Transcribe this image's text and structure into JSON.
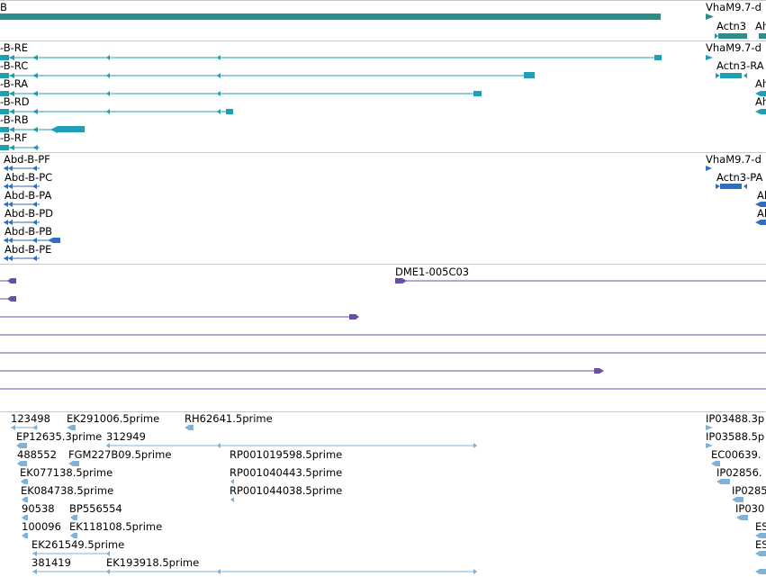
{
  "colors": {
    "gene": "#2a8f8a",
    "transcript": "#1f9fb4",
    "protein": "#2f6dbe",
    "cdna": "#6a4fa8",
    "est": "#7fb2d8",
    "divider": "#c8c8c8"
  },
  "gene_track": {
    "labels": [
      "B",
      "VhaM9.7-d",
      "Actn3",
      "Ah"
    ]
  },
  "transcript_track": {
    "labels": [
      "-B-RE",
      "-B-RC",
      "-B-RA",
      "-B-RD",
      "-B-RB",
      "-B-RF",
      "VhaM9.7-d",
      "Actn3-RA",
      "Ah",
      "Ah"
    ]
  },
  "protein_track": {
    "labels": [
      "Abd-B-PF",
      "Abd-B-PC",
      "Abd-B-PA",
      "Abd-B-PD",
      "Abd-B-PB",
      "Abd-B-PE",
      "VhaM9.7-d",
      "Actn3-PA",
      "Al",
      "Al"
    ]
  },
  "cdna_track": {
    "labels": [
      "DME1-005C03"
    ]
  },
  "est_track": {
    "labels": [
      "123498",
      "EK291006.5prime",
      "RH62641.5prime",
      "IP03488.3p",
      "EP12635.3prime",
      "312949",
      "IP03588.5p",
      "488552",
      "FGM227B09.5prime",
      "RP001019598.5prime",
      "EC00639.",
      "EK077138.5prime",
      "RP001040443.5prime",
      "IP02856.",
      "EK084738.5prime",
      "RP001044038.5prime",
      "IP0285",
      "90538",
      "BP556554",
      "IP030",
      "100096",
      "EK118108.5prime",
      "ES",
      "EK261549.5prime",
      "ES",
      "381419",
      "EK193918.5prime"
    ]
  }
}
